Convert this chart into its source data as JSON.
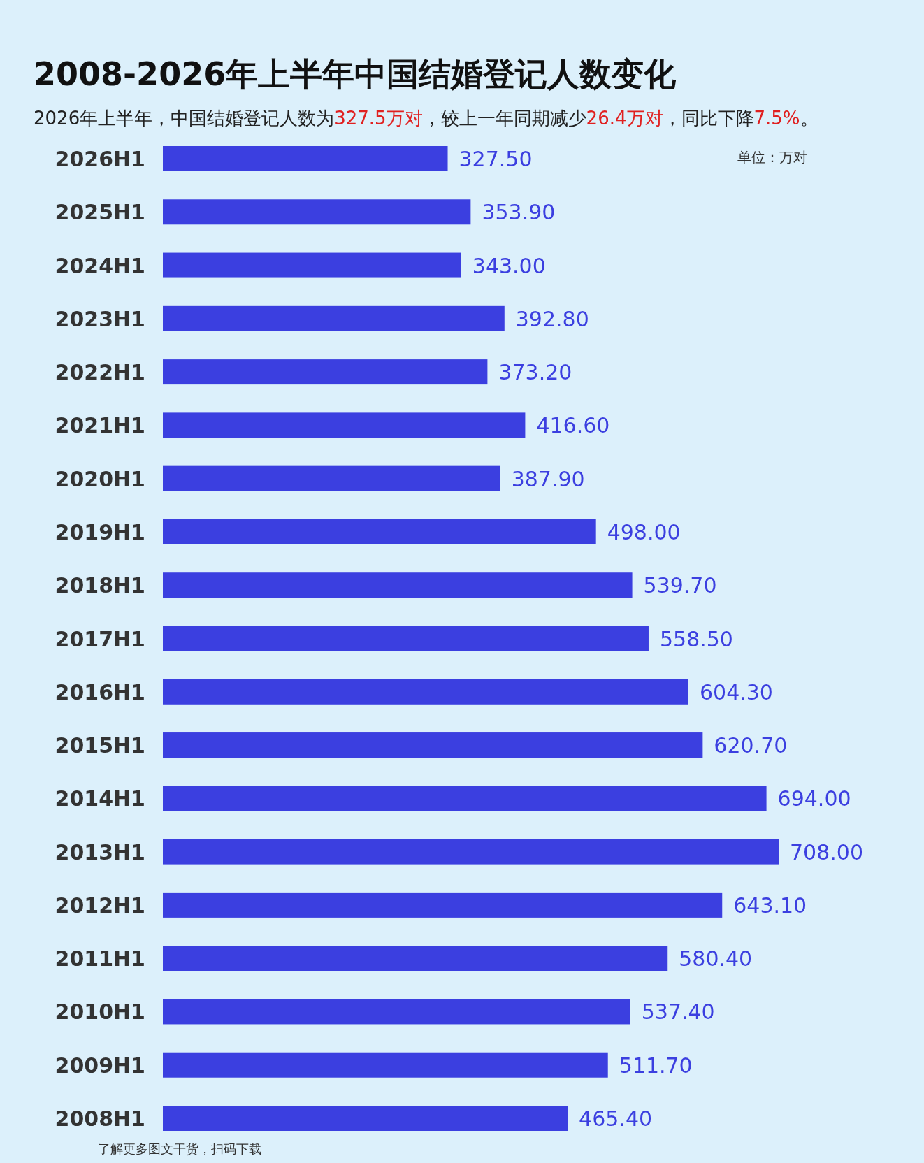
{
  "chart_data": {
    "type": "bar",
    "orientation": "horizontal",
    "title": "2008-2026年上半年中国结婚登记人数变化",
    "subtitle": "2026年上半年，中国结婚登记人数为327.5万对，较上一年同期减少26.4万对，同比下降7.5%。",
    "categories": [
      "2026H1",
      "2025H1",
      "2024H1",
      "2023H1",
      "2022H1",
      "2021H1",
      "2020H1",
      "2019H1",
      "2018H1",
      "2017H1",
      "2016H1",
      "2015H1",
      "2014H1",
      "2013H1",
      "2012H1",
      "2011H1",
      "2010H1",
      "2009H1",
      "2008H1"
    ],
    "values": [
      327.5,
      353.9,
      343.0,
      392.8,
      373.2,
      416.6,
      387.9,
      498.0,
      539.7,
      558.5,
      604.3,
      620.7,
      694.0,
      708.0,
      643.1,
      580.4,
      537.4,
      511.7,
      465.4
    ],
    "value_labels": [
      "327.50",
      "353.90",
      "343.00",
      "392.80",
      "373.20",
      "416.60",
      "387.90",
      "498.00",
      "539.70",
      "558.50",
      "604.30",
      "620.70",
      "694.00",
      "708.00",
      "643.10",
      "580.40",
      "537.40",
      "511.70",
      "465.40"
    ],
    "color": "#3b3fe0",
    "annotations": [
      "单位：万对",
      "了解更多图文干货，扫码下载"
    ]
  }
}
